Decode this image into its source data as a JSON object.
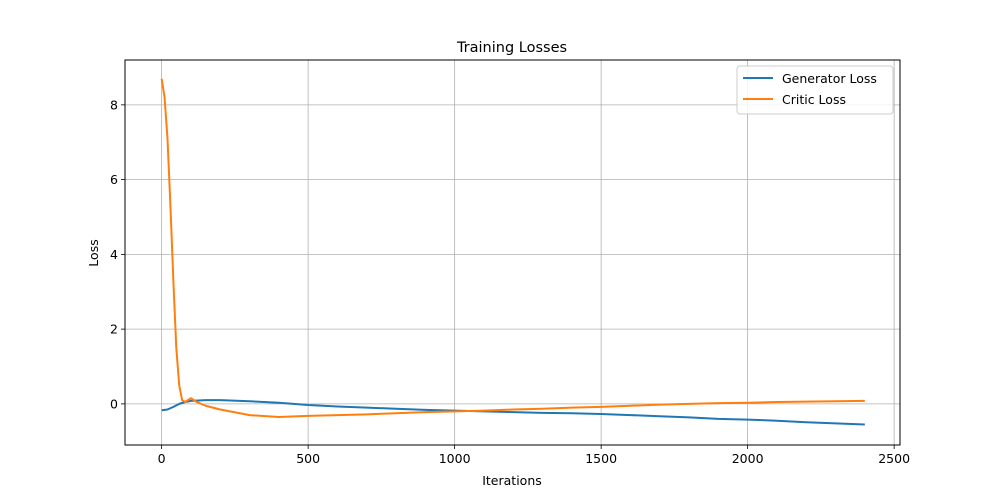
{
  "chart_data": {
    "type": "line",
    "title": "Training Losses",
    "xlabel": "Iterations",
    "ylabel": "Loss",
    "xlim": [
      -125,
      2520
    ],
    "ylim": [
      -1.1,
      9.2
    ],
    "xticks": [
      0,
      500,
      1000,
      1500,
      2000,
      2500
    ],
    "yticks": [
      0,
      2,
      4,
      6,
      8
    ],
    "grid": true,
    "legend_position": "top-right",
    "series": [
      {
        "name": "Generator Loss",
        "color": "#1f77b4",
        "x": [
          0,
          20,
          40,
          60,
          80,
          100,
          150,
          200,
          300,
          400,
          500,
          600,
          700,
          800,
          900,
          1000,
          1100,
          1200,
          1300,
          1400,
          1500,
          1600,
          1700,
          1800,
          1900,
          2000,
          2100,
          2200,
          2300,
          2400
        ],
        "y": [
          -0.17,
          -0.15,
          -0.08,
          0.0,
          0.05,
          0.08,
          0.1,
          0.1,
          0.07,
          0.03,
          -0.03,
          -0.07,
          -0.1,
          -0.13,
          -0.16,
          -0.18,
          -0.2,
          -0.22,
          -0.24,
          -0.25,
          -0.27,
          -0.3,
          -0.33,
          -0.36,
          -0.4,
          -0.42,
          -0.45,
          -0.49,
          -0.52,
          -0.55
        ]
      },
      {
        "name": "Critic Loss",
        "color": "#ff7f0e",
        "x": [
          0,
          10,
          20,
          30,
          40,
          50,
          60,
          70,
          80,
          100,
          120,
          150,
          200,
          300,
          400,
          500,
          600,
          700,
          800,
          900,
          1000,
          1100,
          1200,
          1300,
          1400,
          1500,
          1600,
          1700,
          1800,
          1900,
          2000,
          2100,
          2200,
          2300,
          2400
        ],
        "y": [
          8.7,
          8.2,
          7.1,
          5.3,
          3.3,
          1.5,
          0.5,
          0.1,
          0.05,
          0.15,
          0.05,
          -0.05,
          -0.15,
          -0.3,
          -0.35,
          -0.32,
          -0.3,
          -0.28,
          -0.25,
          -0.22,
          -0.2,
          -0.18,
          -0.15,
          -0.13,
          -0.1,
          -0.08,
          -0.05,
          -0.02,
          0.0,
          0.02,
          0.03,
          0.05,
          0.06,
          0.07,
          0.08
        ]
      }
    ]
  }
}
